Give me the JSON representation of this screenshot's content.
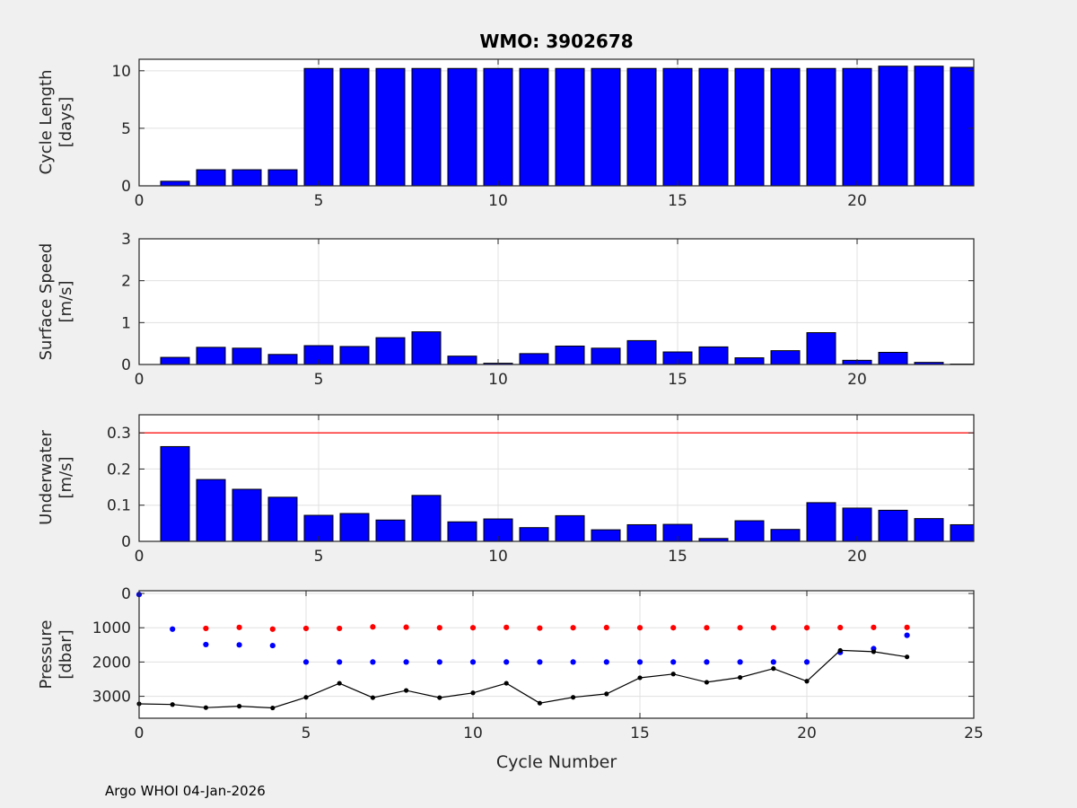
{
  "title": "WMO: 3902678",
  "xlabel": "Cycle Number",
  "footer": "Argo WHOI 04-Jan-2026",
  "colors": {
    "background": "#f0f0f0",
    "plot_bg": "#ffffff",
    "grid": "#e0e0e0",
    "axis": "#262626",
    "tick_label": "#262626",
    "bar": "#0000ff",
    "bar_edge": "#000000",
    "threshold_line": "#ff0000",
    "red_marker": "#ff0000",
    "blue_marker": "#0000ff",
    "black_line": "#000000"
  },
  "chart_data": [
    {
      "type": "bar",
      "ylabel": "Cycle Length",
      "ylabel_unit": "[days]",
      "xlim": [
        0,
        23.25
      ],
      "ylim": [
        0,
        11
      ],
      "xticks": [
        0,
        5,
        10,
        15,
        20
      ],
      "xticklabels": [
        "0",
        "5",
        "10",
        "15",
        "20"
      ],
      "yticks": [
        0,
        5,
        10
      ],
      "yticklabels": [
        "0",
        "5",
        "10"
      ],
      "categories": [
        1,
        2,
        3,
        4,
        5,
        6,
        7,
        8,
        9,
        10,
        11,
        12,
        13,
        14,
        15,
        16,
        17,
        18,
        19,
        20,
        21,
        22,
        23
      ],
      "values": [
        0.4,
        1.4,
        1.4,
        1.4,
        10.2,
        10.2,
        10.2,
        10.2,
        10.2,
        10.2,
        10.2,
        10.2,
        10.2,
        10.2,
        10.2,
        10.2,
        10.2,
        10.2,
        10.2,
        10.2,
        10.4,
        10.4,
        10.3
      ]
    },
    {
      "type": "bar",
      "ylabel": "Surface Speed",
      "ylabel_unit": "[m/s]",
      "xlim": [
        0,
        23.25
      ],
      "ylim": [
        0,
        3
      ],
      "xticks": [
        0,
        5,
        10,
        15,
        20
      ],
      "xticklabels": [
        "0",
        "5",
        "10",
        "15",
        "20"
      ],
      "yticks": [
        0,
        1,
        2,
        3
      ],
      "yticklabels": [
        "0",
        "1",
        "2",
        "3"
      ],
      "categories": [
        1,
        2,
        3,
        4,
        5,
        6,
        7,
        8,
        9,
        10,
        11,
        12,
        13,
        14,
        15,
        16,
        17,
        18,
        19,
        20,
        21,
        22,
        23
      ],
      "values": [
        0.17,
        0.41,
        0.39,
        0.24,
        0.45,
        0.43,
        0.64,
        0.78,
        0.2,
        0.03,
        0.26,
        0.44,
        0.39,
        0.57,
        0.3,
        0.42,
        0.16,
        0.33,
        0.76,
        0.1,
        0.29,
        0.05,
        0.01
      ]
    },
    {
      "type": "bar",
      "ylabel": "Underwater",
      "ylabel_unit": "[m/s]",
      "xlim": [
        0,
        23.25
      ],
      "ylim": [
        0,
        0.35
      ],
      "xticks": [
        0,
        5,
        10,
        15,
        20
      ],
      "xticklabels": [
        "0",
        "5",
        "10",
        "15",
        "20"
      ],
      "yticks": [
        0,
        0.1,
        0.2,
        0.3
      ],
      "yticklabels": [
        "0",
        "0.1",
        "0.2",
        "0.3"
      ],
      "threshold": 0.3,
      "categories": [
        1,
        2,
        3,
        4,
        5,
        6,
        7,
        8,
        9,
        10,
        11,
        12,
        13,
        14,
        15,
        16,
        17,
        18,
        19,
        20,
        21,
        22,
        23
      ],
      "values": [
        0.262,
        0.171,
        0.144,
        0.122,
        0.072,
        0.077,
        0.059,
        0.127,
        0.054,
        0.062,
        0.038,
        0.071,
        0.032,
        0.046,
        0.047,
        0.008,
        0.057,
        0.033,
        0.107,
        0.092,
        0.086,
        0.063,
        0.046
      ]
    },
    {
      "type": "scatter",
      "ylabel": "Pressure",
      "ylabel_unit": "[dbar]",
      "xlim": [
        0,
        25
      ],
      "ylim": [
        -80,
        3640
      ],
      "reversed": true,
      "xticks": [
        0,
        5,
        10,
        15,
        20,
        25
      ],
      "xticklabels": [
        "0",
        "5",
        "10",
        "15",
        "20",
        "25"
      ],
      "yticks": [
        0,
        1000,
        2000,
        3000
      ],
      "yticklabels": [
        "0",
        "1000",
        "2000",
        "3000"
      ],
      "series": [
        {
          "name": "park-pressure-red-dots",
          "color": "red",
          "line": false,
          "x": [
            2,
            3,
            4,
            5,
            6,
            7,
            8,
            9,
            10,
            11,
            12,
            13,
            14,
            15,
            16,
            17,
            18,
            19,
            20,
            21,
            22,
            23
          ],
          "y": [
            1020,
            990,
            1040,
            1020,
            1020,
            975,
            985,
            1000,
            1000,
            990,
            1010,
            1000,
            995,
            1000,
            1000,
            1000,
            1000,
            1000,
            1000,
            995,
            990,
            990
          ]
        },
        {
          "name": "profile-pressure-blue-dots",
          "color": "blue",
          "line": false,
          "x": [
            0,
            1,
            2,
            3,
            4,
            5,
            6,
            7,
            8,
            9,
            10,
            11,
            12,
            13,
            14,
            15,
            16,
            17,
            18,
            19,
            20,
            21,
            22,
            23
          ],
          "y": [
            30,
            1040,
            1490,
            1500,
            1520,
            2000,
            2000,
            2000,
            2000,
            2000,
            2000,
            2000,
            2000,
            2000,
            2000,
            2000,
            2000,
            2000,
            2000,
            2000,
            2000,
            1720,
            1610,
            1220
          ]
        },
        {
          "name": "max-pressure-black-line",
          "color": "black",
          "line": true,
          "x": [
            0,
            1,
            2,
            3,
            4,
            5,
            6,
            7,
            8,
            9,
            10,
            11,
            12,
            13,
            14,
            15,
            16,
            17,
            18,
            19,
            20,
            21,
            22,
            23
          ],
          "y": [
            3220,
            3240,
            3330,
            3290,
            3340,
            3030,
            2620,
            3040,
            2830,
            3040,
            2900,
            2620,
            3200,
            3030,
            2930,
            2460,
            2350,
            2590,
            2450,
            2190,
            2560,
            1660,
            1700,
            1850
          ]
        }
      ]
    }
  ]
}
